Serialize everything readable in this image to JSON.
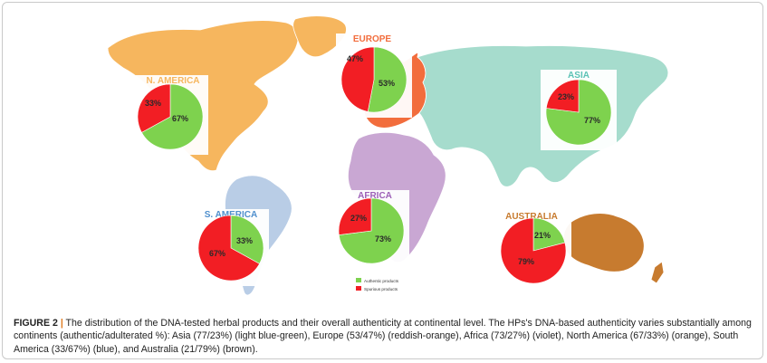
{
  "colors": {
    "authentic": "#7ed24e",
    "spurious": "#f21e24",
    "asia": "#a6dccd",
    "europe": "#f26d3d",
    "africa": "#c9a7d3",
    "north_america": "#f6b65e",
    "south_america": "#b9cde6",
    "australia": "#c77b2f"
  },
  "figure": {
    "label": "FIGURE 2",
    "separator": "|",
    "text": "The distribution of the DNA-tested herbal products and their overall authenticity at continental level. The HPs's DNA-based authenticity varies substantially among continents (authentic/adulterated %): Asia (77/23%) (light blue-green), Europe (53/47%) (reddish-orange), Africa (73/27%) (violet), North America (67/33%) (orange), South America (33/67%) (blue), and Australia (21/79%) (brown)."
  },
  "chart_data": {
    "type": "pie",
    "legend": {
      "placement": "bottom-center",
      "entries": [
        "Authentic products",
        "Spurious products"
      ]
    },
    "series": [
      {
        "name": "EUROPE",
        "authentic": 53,
        "spurious": 47,
        "authentic_label": "53%",
        "spurious_label": "47%"
      },
      {
        "name": "N. AMERICA",
        "authentic": 67,
        "spurious": 33,
        "authentic_label": "67%",
        "spurious_label": "33%"
      },
      {
        "name": "ASIA",
        "authentic": 77,
        "spurious": 23,
        "authentic_label": "77%",
        "spurious_label": "23%"
      },
      {
        "name": "AFRICA",
        "authentic": 73,
        "spurious": 27,
        "authentic_label": "73%",
        "spurious_label": "27%"
      },
      {
        "name": "S. AMERICA",
        "authentic": 33,
        "spurious": 67,
        "authentic_label": "33%",
        "spurious_label": "67%"
      },
      {
        "name": "AUSTRALIA",
        "authentic": 21,
        "spurious": 79,
        "authentic_label": "21%",
        "spurious_label": "79%"
      }
    ]
  }
}
